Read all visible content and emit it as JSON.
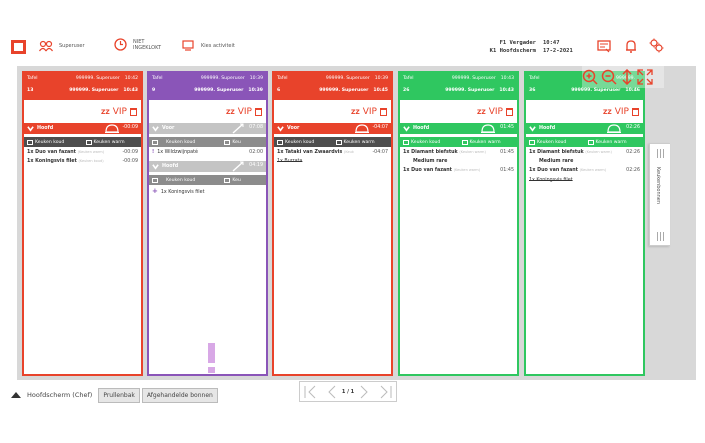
{
  "topbar": {
    "user": "Superuser",
    "clock_status": "NIET INGEKLOKT",
    "clock_line1": "NIET",
    "clock_line2": "INGEKLOKT",
    "activity": "Kies activiteit",
    "location1": "F1 Vergader",
    "location2": "K1 Hoofdscherm",
    "time": "10:47",
    "date": "17-2-2021",
    "icons": [
      "user-group-icon",
      "clock-icon",
      "activity-icon",
      "notes-icon",
      "bell-icon",
      "settings-icon"
    ]
  },
  "zoom_controls": [
    "zoom-in-icon",
    "zoom-out-icon",
    "sort-icon",
    "expand-icon"
  ],
  "columns": [
    {
      "color": "red",
      "tafel_label": "Tafel",
      "user": "999999. Superuser",
      "time_top": "10:42",
      "table": "13",
      "user2": "999999. Superuser",
      "time_bottom": "10:43",
      "section": "Hoofd",
      "section_time": "-00:09",
      "keuken1": "Keuken koud",
      "keuken2": "Keuken warm",
      "lines": [
        {
          "text": "1x Duo van fazant",
          "sub": "(Keuken warm)",
          "time": "-00:09",
          "style": "bold"
        },
        {
          "text": "1x Koningsvis filet",
          "sub": "(Keuken koud)",
          "time": "-00:09",
          "style": "bold"
        }
      ]
    },
    {
      "color": "purple",
      "tafel_label": "Tafel",
      "user": "999999. Superuser",
      "time_top": "10:39",
      "table": "9",
      "user2": "999999. Superuser",
      "time_bottom": "10:39",
      "section": "Voor",
      "section_time": "07:08",
      "keuken1": "Keuken koud",
      "keuken2": "Keu",
      "section2": "Hoofd",
      "section2_time": "04:19",
      "keuken3": "Keuken koud",
      "keuken4": "Keu",
      "lines": [
        {
          "text": "1x Wildzwijnpaté",
          "time": "02:00"
        },
        {
          "text": "1x Koningsvis filet"
        }
      ]
    },
    {
      "color": "red",
      "tafel_label": "Tafel",
      "user": "999999. Superuser",
      "time_top": "10:39",
      "table": "6",
      "user2": "999999. Superuser",
      "time_bottom": "10:45",
      "section": "Voor",
      "section_time": "-04:07",
      "keuken1": "Keuken koud",
      "keuken2": "Keuken warm",
      "lines": [
        {
          "text": "1x Tataki van Zwaardvis",
          "sub": "(Keuk",
          "time": "-04:07",
          "style": "bold"
        },
        {
          "text": "1x Burrata",
          "style": "strike"
        }
      ]
    },
    {
      "color": "green",
      "tafel_label": "Tafel",
      "user": "999999. Superuser",
      "time_top": "10:43",
      "table": "26",
      "user2": "999999. Superuser",
      "time_bottom": "10:43",
      "section": "Hoofd",
      "section_time": "01:45",
      "keuken1": "Keuken koud",
      "keuken2": "Keuken warm",
      "lines": [
        {
          "text": "1x Diamant biefstuk",
          "sub": "(Keuken warm)",
          "time": "01:45",
          "style": "bold"
        },
        {
          "text": "Medium rare",
          "style": "indent"
        },
        {
          "text": "1x Duo van fazant",
          "sub": "(Keuken warm)",
          "time": "01:45",
          "style": "bold"
        }
      ]
    },
    {
      "color": "green",
      "tafel_label": "Tafel",
      "user": "999999.",
      "time_top": "",
      "table": "36",
      "user2": "999999. Superuser",
      "time_bottom": "10:46",
      "section": "Hoofd",
      "section_time": "02:26",
      "keuken1": "Keuken koud",
      "keuken2": "Keuken warm",
      "lines": [
        {
          "text": "1x Diamant biefstuk",
          "sub": "(Keuken warm)",
          "time": "02:26",
          "style": "bold"
        },
        {
          "text": "Medium rare",
          "style": "indent"
        },
        {
          "text": "1x Duo van fazant",
          "sub": "(Keuken warm)",
          "time": "02:26",
          "style": "bold"
        },
        {
          "text": "1x Koningsvis filet",
          "style": "strike"
        }
      ]
    }
  ],
  "vip_label": "VIP",
  "sidetab": {
    "label": "Keukenbonnen"
  },
  "bottombar": {
    "title": "Hoofdscherm (Chef)",
    "btn1": "Prullenbak",
    "btn2": "Afgehandelde bonnen"
  },
  "pager": {
    "text": "1 / 1"
  }
}
